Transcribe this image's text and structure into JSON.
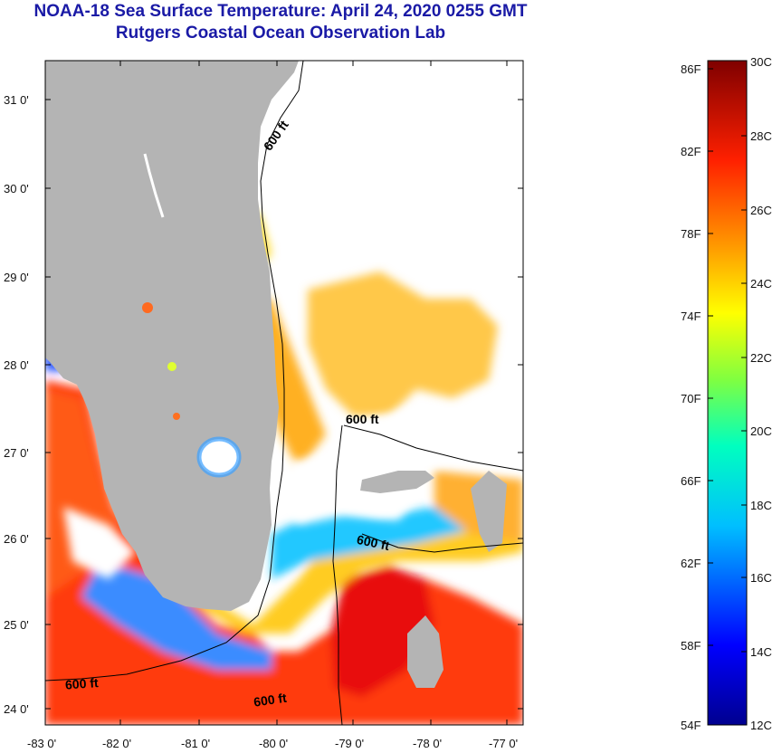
{
  "title": "NOAA-18 Sea Surface Temperature:  April 24, 2020 0255 GMT",
  "subtitle": "Rutgers Coastal Ocean Observation Lab",
  "lat_ticks": [
    "31 0'",
    "30 0'",
    "29 0'",
    "28 0'",
    "27 0'",
    "26 0'",
    "25 0'",
    "24 0'"
  ],
  "lon_ticks": [
    "-83 0'",
    "-82 0'",
    "-81 0'",
    "-80 0'",
    "-79 0'",
    "-78 0'",
    "-77 0'"
  ],
  "contour_labels": [
    "600 ft",
    "600 ft",
    "600 ft",
    "600 ft",
    "600 ft"
  ],
  "colorbar": {
    "fahrenheit": [
      "86F",
      "82F",
      "78F",
      "74F",
      "70F",
      "66F",
      "62F",
      "58F",
      "54F"
    ],
    "celsius": [
      "30C",
      "28C",
      "26C",
      "24C",
      "22C",
      "20C",
      "18C",
      "16C",
      "14C",
      "12C"
    ]
  },
  "colors": {
    "title": "#1a1aa6",
    "land": "#b4b4b4",
    "no_data": "#ffffff",
    "contour": "#000000"
  }
}
